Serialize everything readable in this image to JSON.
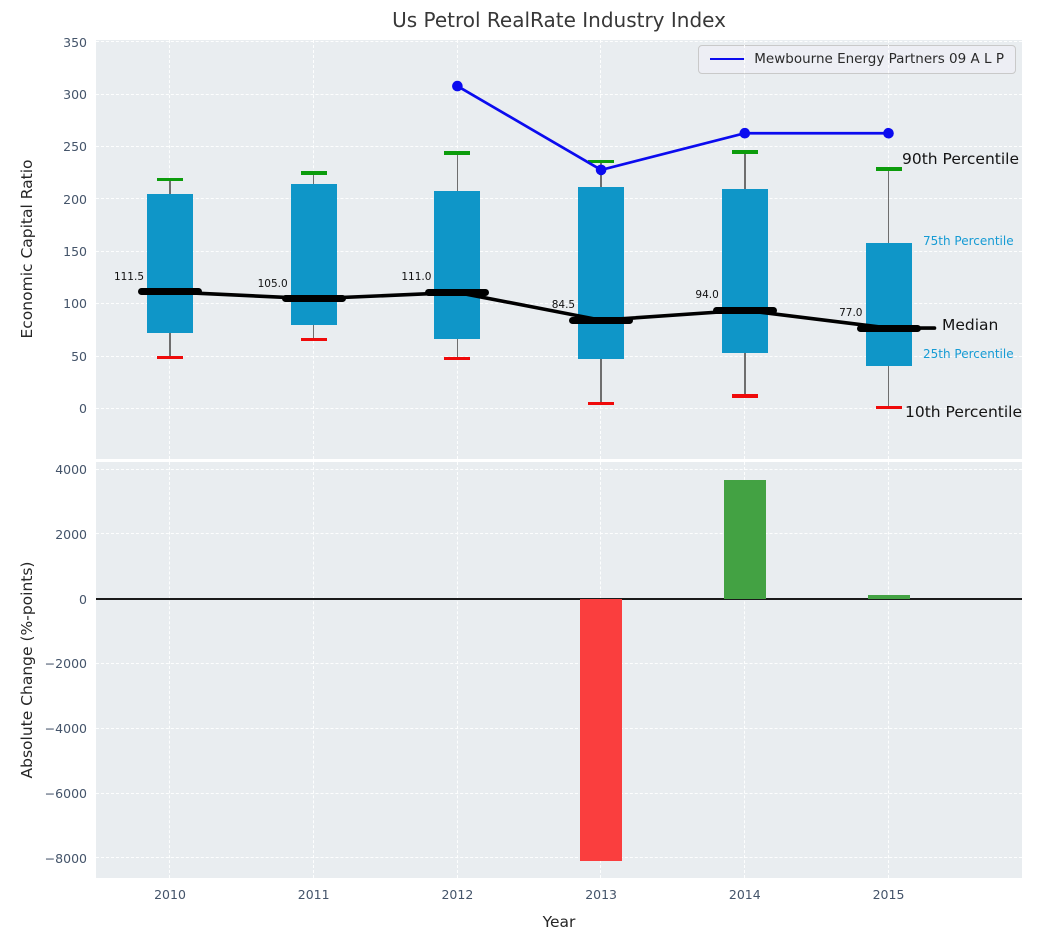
{
  "title": "Us Petrol RealRate Industry Index",
  "legend": {
    "label": "Mewbourne Energy Partners 09 A L P"
  },
  "colors": {
    "axes_background": "#e9edf0",
    "grid": "#ffffff",
    "iqr_box": "#0f96c8",
    "whisker": "#6e6e6e",
    "cap_90th": "#0c9c0c",
    "cap_10th": "#ef0a0a",
    "median": "#000000",
    "company_line": "#0b0bef",
    "bar_positive": "#43a243",
    "bar_negative": "#fa3e3e",
    "tick_text": "#44546a",
    "annotation_cyan": "#169bd4",
    "zero_line": "#1a1a1a"
  },
  "chart_data": [
    {
      "type": "box-percentile",
      "title": "Us Petrol RealRate Industry Index",
      "ylabel": "Economic Capital Ratio",
      "categories": [
        "2010",
        "2011",
        "2012",
        "2013",
        "2014",
        "2015"
      ],
      "ylim": [
        -48,
        352
      ],
      "ytick_values": [
        350,
        300,
        250,
        200,
        150,
        100,
        50,
        0
      ],
      "ytick_labels": [
        "350",
        "300",
        "250",
        "200",
        "150",
        "100",
        "50",
        "0"
      ],
      "grid": true,
      "legend_position": "upper right",
      "series": {
        "p90": [
          219,
          225,
          244,
          236,
          245,
          229
        ],
        "p75": [
          205,
          215,
          208,
          212,
          210,
          158
        ],
        "median": [
          111.5,
          105.0,
          111.0,
          84.5,
          94.0,
          77.0
        ],
        "p25": [
          72,
          80,
          67,
          47,
          53,
          41
        ],
        "p10": [
          49,
          66,
          48,
          5,
          12,
          1
        ]
      },
      "median_labels": [
        "111.5",
        "105.0",
        "111.0",
        "84.5",
        "94.0",
        "77.0"
      ],
      "company_line": {
        "name": "Mewbourne Energy Partners 09 A L P",
        "values": [
          null,
          null,
          308,
          228,
          263,
          263
        ]
      },
      "annotations": [
        {
          "label": "90th Percentile",
          "v": 238,
          "x": 806,
          "style": "large"
        },
        {
          "label": "75th Percentile",
          "v": 160,
          "x": 827,
          "style": "small"
        },
        {
          "label": "Median",
          "v": 80,
          "x": 846,
          "style": "large"
        },
        {
          "label": "25th Percentile",
          "v": 52.5,
          "x": 827,
          "style": "small"
        },
        {
          "label": "10th Percentile",
          "v": -3,
          "x": 809,
          "style": "large"
        }
      ]
    },
    {
      "type": "bar",
      "ylabel": "Absolute Change (%-points)",
      "xlabel": "Year",
      "categories": [
        "2010",
        "2011",
        "2012",
        "2013",
        "2014",
        "2015"
      ],
      "values": [
        null,
        null,
        null,
        -8080,
        3680,
        120
      ],
      "ylim": [
        -8610,
        4230
      ],
      "ytick_values": [
        4000,
        2000,
        0,
        -2000,
        -4000,
        -6000,
        -8000
      ],
      "ytick_labels": [
        "4000",
        "2000",
        "0",
        "−2000",
        "−4000",
        "−6000",
        "−8000"
      ],
      "grid": true
    }
  ]
}
